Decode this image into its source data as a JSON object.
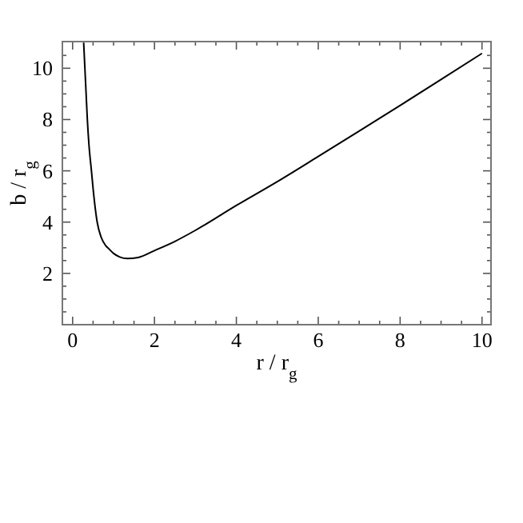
{
  "chart_data": {
    "type": "line",
    "xlabel": "r / r$_{g}$",
    "ylabel": "b / r$_{g}$",
    "x": [
      0.27,
      0.3,
      0.33,
      0.36,
      0.4,
      0.46,
      0.52,
      0.6,
      0.7,
      0.8,
      0.89,
      1.0,
      1.15,
      1.34,
      1.6,
      2.0,
      2.5,
      3.0,
      4.0,
      5.0,
      6.0,
      7.0,
      8.0,
      9.0,
      10.0
    ],
    "series": [
      {
        "color": "#000000",
        "values": [
          11,
          10,
          9,
          8,
          7,
          6,
          5,
          4,
          3.4,
          3.1,
          2.95,
          2.78,
          2.64,
          2.58,
          2.62,
          2.89,
          3.25,
          3.68,
          4.65,
          5.58,
          6.56,
          7.55,
          8.55,
          9.56,
          10.58
        ]
      }
    ],
    "xlim": [
      -0.25,
      10.22
    ],
    "ylim": [
      0,
      11.04
    ],
    "xticks": [
      0,
      {
        "value": 0.5,
        "label": null
      },
      {
        "value": 1,
        "label": null
      },
      {
        "value": 1.5,
        "label": null
      },
      2,
      {
        "value": 2.5,
        "label": null
      },
      {
        "value": 3,
        "label": null
      },
      {
        "value": 3.5,
        "label": null
      },
      4,
      {
        "value": 4.5,
        "label": null
      },
      {
        "value": 5,
        "label": null
      },
      {
        "value": 5.5,
        "label": null
      },
      6,
      {
        "value": 6.5,
        "label": null
      },
      {
        "value": 7,
        "label": null
      },
      {
        "value": 7.5,
        "label": null
      },
      8,
      {
        "value": 8.5,
        "label": null
      },
      {
        "value": 9,
        "label": null
      },
      {
        "value": 9.5,
        "label": null
      },
      10
    ],
    "yticks": [
      {
        "value": 0.5,
        "label": null
      },
      {
        "value": 1,
        "label": null
      },
      {
        "value": 1.5,
        "label": null
      },
      2,
      {
        "value": 2.5,
        "label": null
      },
      {
        "value": 3,
        "label": null
      },
      {
        "value": 3.5,
        "label": null
      },
      4,
      {
        "value": 4.5,
        "label": null
      },
      {
        "value": 5,
        "label": null
      },
      {
        "value": 5.5,
        "label": null
      },
      6,
      {
        "value": 6.5,
        "label": null
      },
      {
        "value": 7,
        "label": null
      },
      {
        "value": 7.5,
        "label": null
      },
      8,
      {
        "value": 8.5,
        "label": null
      },
      {
        "value": 9,
        "label": null
      },
      {
        "value": 9.5,
        "label": null
      },
      10,
      {
        "value": 10.5,
        "label": null
      }
    ],
    "grid": false,
    "marker": "none",
    "line_style": "solid"
  }
}
